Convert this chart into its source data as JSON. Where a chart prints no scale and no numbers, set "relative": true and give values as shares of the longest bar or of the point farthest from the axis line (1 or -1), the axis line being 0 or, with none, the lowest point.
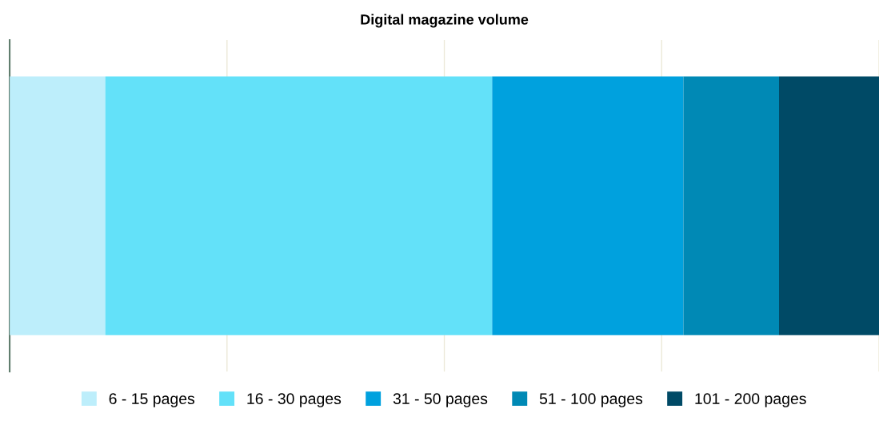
{
  "chart_data": {
    "type": "bar",
    "orientation": "horizontal",
    "stacked": true,
    "relative": true,
    "title": "Digital magazine volume",
    "categories": [
      null
    ],
    "series": [
      {
        "name": "6 - 15 pages",
        "color": "#bdeefb",
        "values": [
          0.11
        ]
      },
      {
        "name": "16 - 30 pages",
        "color": "#63e1f9",
        "values": [
          0.445
        ]
      },
      {
        "name": "31 - 50 pages",
        "color": "#00a1de",
        "values": [
          0.22
        ]
      },
      {
        "name": "51 - 100 pages",
        "color": "#0089b5",
        "values": [
          0.11
        ]
      },
      {
        "name": "101 - 200 pages",
        "color": "#004a66",
        "values": [
          0.115
        ]
      }
    ],
    "grid": "x",
    "legend": "bottom"
  }
}
